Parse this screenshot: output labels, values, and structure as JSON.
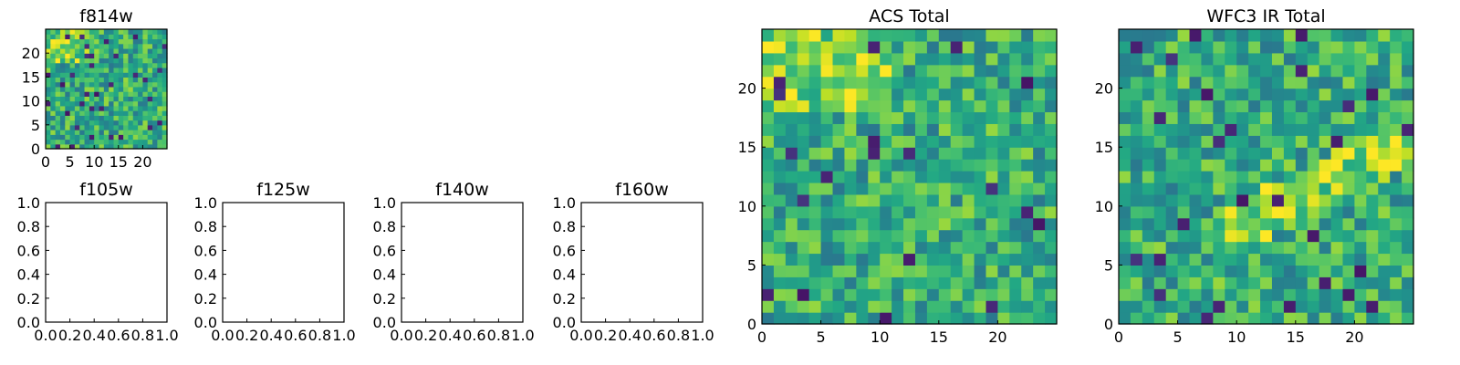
{
  "chart_data": [
    {
      "type": "heatmap",
      "title": "f814w",
      "xticks": [
        "0",
        "5",
        "10",
        "15",
        "20"
      ],
      "yticks": [
        "0",
        "5",
        "10",
        "15",
        "20"
      ],
      "grid_size": 25,
      "xlim": [
        0,
        25
      ],
      "ylim": [
        0,
        25
      ],
      "colormap": "viridis",
      "pixel_seed": 3,
      "emphasis": "upper-left"
    },
    {
      "type": "empty",
      "title": "f105w",
      "xticks": [
        "0.0",
        "0.2",
        "0.4",
        "0.6",
        "0.8",
        "1.0"
      ],
      "yticks": [
        "0.0",
        "0.2",
        "0.4",
        "0.6",
        "0.8",
        "1.0"
      ],
      "xlim": [
        0,
        1
      ],
      "ylim": [
        0,
        1
      ]
    },
    {
      "type": "empty",
      "title": "f125w",
      "xticks": [
        "0.0",
        "0.2",
        "0.4",
        "0.6",
        "0.8",
        "1.0"
      ],
      "yticks": [
        "0.0",
        "0.2",
        "0.4",
        "0.6",
        "0.8",
        "1.0"
      ],
      "xlim": [
        0,
        1
      ],
      "ylim": [
        0,
        1
      ]
    },
    {
      "type": "empty",
      "title": "f140w",
      "xticks": [
        "0.0",
        "0.2",
        "0.4",
        "0.6",
        "0.8",
        "1.0"
      ],
      "yticks": [
        "0.0",
        "0.2",
        "0.4",
        "0.6",
        "0.8",
        "1.0"
      ],
      "xlim": [
        0,
        1
      ],
      "ylim": [
        0,
        1
      ]
    },
    {
      "type": "empty",
      "title": "f160w",
      "xticks": [
        "0.0",
        "0.2",
        "0.4",
        "0.6",
        "0.8",
        "1.0"
      ],
      "yticks": [
        "0.0",
        "0.2",
        "0.4",
        "0.6",
        "0.8",
        "1.0"
      ],
      "xlim": [
        0,
        1
      ],
      "ylim": [
        0,
        1
      ]
    },
    {
      "type": "heatmap",
      "title": "ACS Total",
      "xticks": [
        "0",
        "5",
        "10",
        "15",
        "20"
      ],
      "yticks": [
        "0",
        "5",
        "10",
        "15",
        "20"
      ],
      "grid_size": 25,
      "xlim": [
        0,
        25
      ],
      "ylim": [
        0,
        25
      ],
      "colormap": "viridis",
      "pixel_seed": 17,
      "emphasis": "upper-left"
    },
    {
      "type": "heatmap",
      "title": "WFC3 IR Total",
      "xticks": [
        "0",
        "5",
        "10",
        "15",
        "20"
      ],
      "yticks": [
        "0",
        "5",
        "10",
        "15",
        "20"
      ],
      "grid_size": 25,
      "xlim": [
        0,
        25
      ],
      "ylim": [
        0,
        25
      ],
      "colormap": "viridis",
      "pixel_seed": 41,
      "emphasis": "diagonal-band"
    }
  ]
}
